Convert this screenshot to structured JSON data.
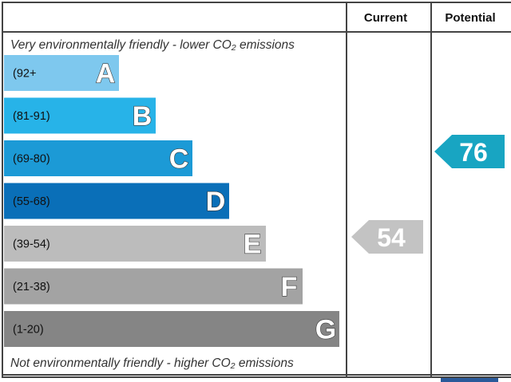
{
  "chart_data": {
    "type": "bar",
    "title": "",
    "header": {
      "current": "Current",
      "potential": "Potential"
    },
    "top_note": "Very environmentally friendly - lower CO₂ emissions",
    "bottom_note": "Not environmentally friendly - higher CO₂ emissions",
    "bands": [
      {
        "range": "(92+",
        "letter": "A",
        "color": "#7ec8ee"
      },
      {
        "range": "(81-91)",
        "letter": "B",
        "color": "#27b3e8"
      },
      {
        "range": "(69-80)",
        "letter": "C",
        "color": "#1c9ad6"
      },
      {
        "range": "(55-68)",
        "letter": "D",
        "color": "#0a6fb8"
      },
      {
        "range": "(39-54)",
        "letter": "E",
        "color": "#bcbcbc"
      },
      {
        "range": "(21-38)",
        "letter": "F",
        "color": "#a3a3a3"
      },
      {
        "range": "(1-20)",
        "letter": "G",
        "color": "#858585"
      }
    ],
    "current": {
      "value": 54,
      "band": "E",
      "color": "#c3c3c3"
    },
    "potential": {
      "value": 76,
      "band": "C",
      "color": "#18a5c2"
    }
  }
}
